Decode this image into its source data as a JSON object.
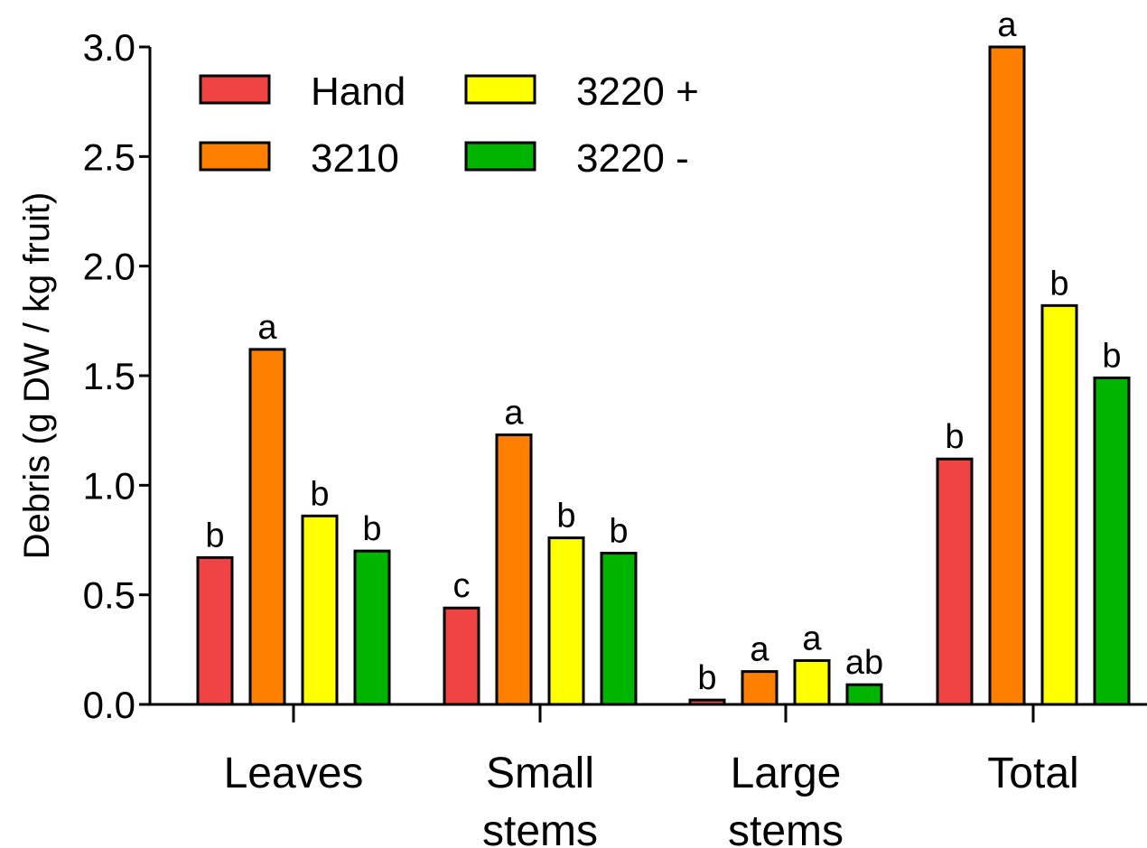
{
  "chart_data": {
    "type": "bar",
    "title": "",
    "xlabel": "",
    "ylabel": "Debris (g DW / kg fruit)",
    "ylim": [
      0,
      3.0
    ],
    "yticks": [
      0.0,
      0.5,
      1.0,
      1.5,
      2.0,
      2.5,
      3.0
    ],
    "ytick_labels": [
      "0.0",
      "0.5",
      "1.0",
      "1.5",
      "2.0",
      "2.5",
      "3.0"
    ],
    "categories": [
      "Leaves",
      "Small stems",
      "Large stems",
      "Total"
    ],
    "category_lines": [
      [
        "Leaves"
      ],
      [
        "Small",
        "stems"
      ],
      [
        "Large",
        "stems"
      ],
      [
        "Total"
      ]
    ],
    "grid": false,
    "legend_position": "top-left",
    "series": [
      {
        "name": "Hand",
        "color": "#F04444",
        "values": [
          0.67,
          0.44,
          0.02,
          1.12
        ],
        "labels": [
          "b",
          "c",
          "b",
          "b"
        ]
      },
      {
        "name": "3210",
        "color": "#FF7F00",
        "values": [
          1.62,
          1.23,
          0.15,
          3.0
        ],
        "labels": [
          "a",
          "a",
          "a",
          "a"
        ]
      },
      {
        "name": "3220 +",
        "color": "#FFFF00",
        "values": [
          0.86,
          0.76,
          0.2,
          1.82
        ],
        "labels": [
          "b",
          "b",
          "a",
          "b"
        ]
      },
      {
        "name": "3220 -",
        "color": "#00B400",
        "values": [
          0.7,
          0.69,
          0.09,
          1.49
        ],
        "labels": [
          "b",
          "b",
          "ab",
          "b"
        ]
      }
    ]
  }
}
